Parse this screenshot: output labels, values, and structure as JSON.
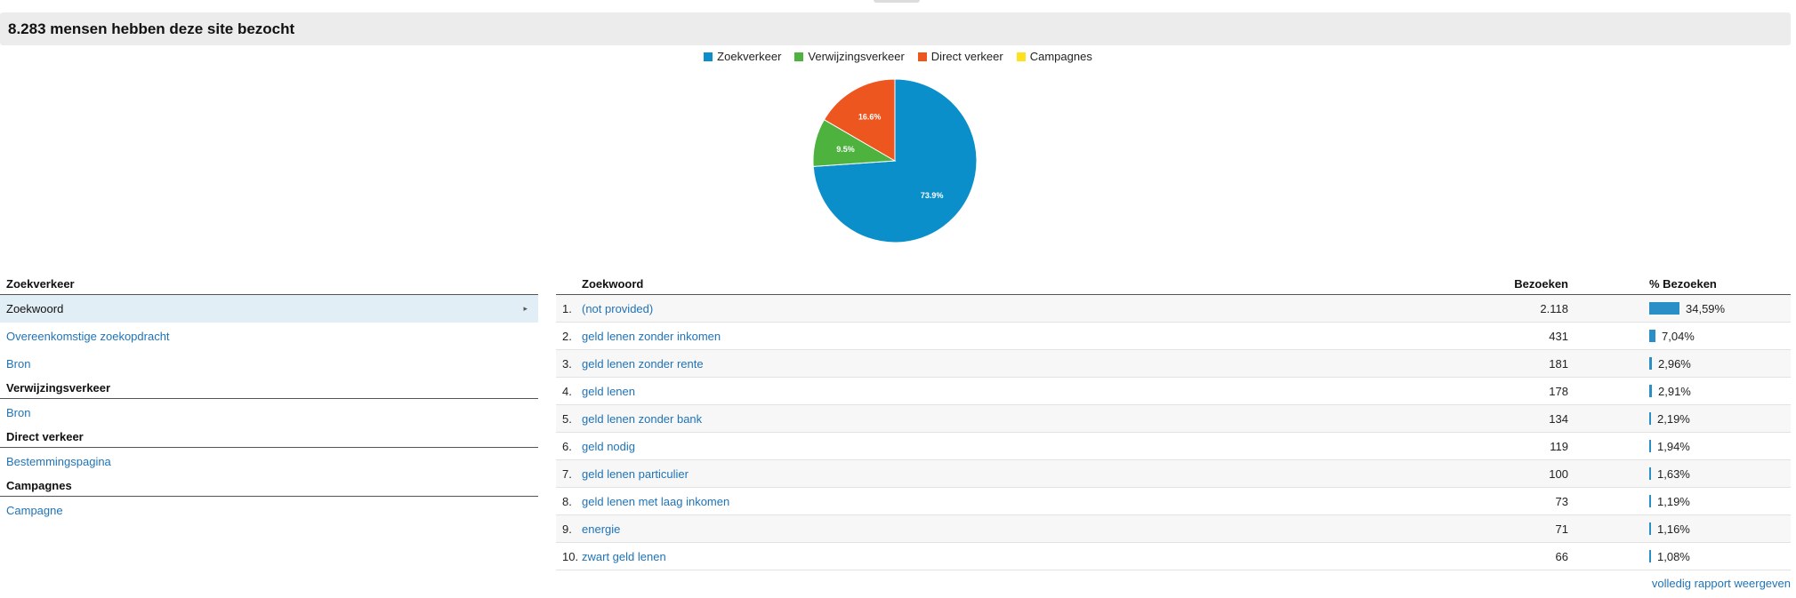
{
  "header": {
    "title": "8.283 mensen hebben deze site bezocht"
  },
  "chart_data": {
    "type": "pie",
    "slices": [
      {
        "name": "Zoekverkeer",
        "value": 73.9,
        "label": "73.9%",
        "color": "#0b8fcb"
      },
      {
        "name": "Verwijzingsverkeer",
        "value": 9.5,
        "label": "9.5%",
        "color": "#4eb23f"
      },
      {
        "name": "Direct verkeer",
        "value": 16.6,
        "label": "16.6%",
        "color": "#ee561f"
      },
      {
        "name": "Campagnes",
        "value": 0,
        "label": "",
        "color": "#ffe21c"
      }
    ],
    "legend_position": "top"
  },
  "left_panel": {
    "sections": [
      {
        "title": "Zoekverkeer",
        "items": [
          {
            "label": "Zoekwoord",
            "active": true
          },
          {
            "label": "Overeenkomstige zoekopdracht",
            "active": false
          },
          {
            "label": "Bron",
            "active": false
          }
        ]
      },
      {
        "title": "Verwijzingsverkeer",
        "items": [
          {
            "label": "Bron",
            "active": false
          }
        ]
      },
      {
        "title": "Direct verkeer",
        "items": [
          {
            "label": "Bestemmingspagina",
            "active": false
          }
        ]
      },
      {
        "title": "Campagnes",
        "items": [
          {
            "label": "Campagne",
            "active": false
          }
        ]
      }
    ],
    "chevron": "▸"
  },
  "table": {
    "headers": {
      "keyword": "Zoekwoord",
      "visits": "Bezoeken",
      "pct": "% Bezoeken"
    },
    "rows": [
      {
        "num": "1.",
        "keyword": "(not provided)",
        "visits": "2.118",
        "pct": "34,59%",
        "share": 34.59
      },
      {
        "num": "2.",
        "keyword": "geld lenen zonder inkomen",
        "visits": "431",
        "pct": "7,04%",
        "share": 7.04
      },
      {
        "num": "3.",
        "keyword": "geld lenen zonder rente",
        "visits": "181",
        "pct": "2,96%",
        "share": 2.96
      },
      {
        "num": "4.",
        "keyword": "geld lenen",
        "visits": "178",
        "pct": "2,91%",
        "share": 2.91
      },
      {
        "num": "5.",
        "keyword": "geld lenen zonder bank",
        "visits": "134",
        "pct": "2,19%",
        "share": 2.19
      },
      {
        "num": "6.",
        "keyword": "geld nodig",
        "visits": "119",
        "pct": "1,94%",
        "share": 1.94
      },
      {
        "num": "7.",
        "keyword": "geld lenen particulier",
        "visits": "100",
        "pct": "1,63%",
        "share": 1.63
      },
      {
        "num": "8.",
        "keyword": "geld lenen met laag inkomen",
        "visits": "73",
        "pct": "1,19%",
        "share": 1.19
      },
      {
        "num": "9.",
        "keyword": "energie",
        "visits": "71",
        "pct": "1,16%",
        "share": 1.16
      },
      {
        "num": "10.",
        "keyword": "zwart geld lenen",
        "visits": "66",
        "pct": "1,08%",
        "share": 1.08
      }
    ]
  },
  "footer": {
    "full_report": "volledig rapport weergeven"
  }
}
